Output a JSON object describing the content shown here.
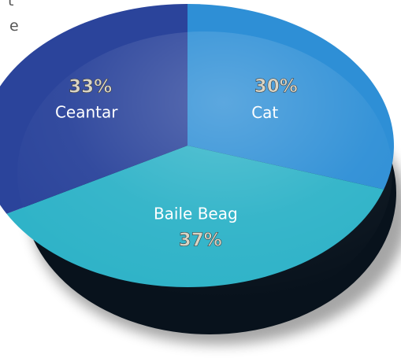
{
  "edge_fragments": [
    "t",
    "e"
  ],
  "chart_data": {
    "type": "pie",
    "title": "",
    "slices": [
      {
        "label": "Cat",
        "value": 30,
        "percent_label": "30%",
        "color": "#2e8fd6"
      },
      {
        "label": "Baile Beag",
        "value": 37,
        "percent_label": "37%",
        "color": "#2fb3c8"
      },
      {
        "label": "Ceantar",
        "value": 33,
        "percent_label": "33%",
        "color": "#2b449b"
      }
    ]
  }
}
